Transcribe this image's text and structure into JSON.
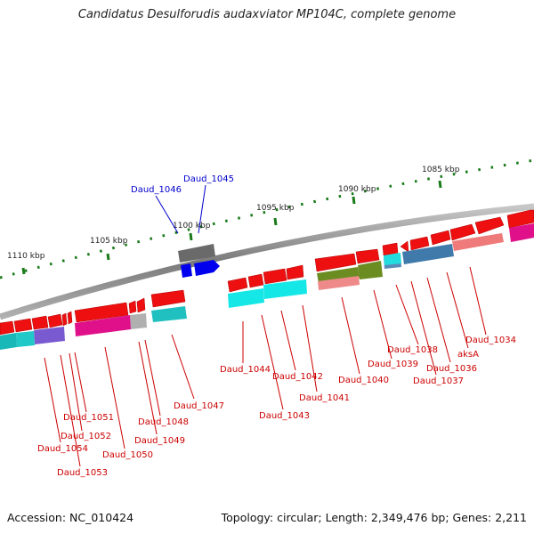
{
  "title": "Candidatus Desulforudis audaxviator MP104C, complete genome",
  "accession": "Accession: NC_010424",
  "footer": "Topology: circular; Length: 2,349,476 bp; Genes: 2,211",
  "scale_labels": [
    "1085 kbp",
    "1090 kbp",
    "1095 kbp",
    "1100 kbp",
    "1105 kbp",
    "1110 kbp"
  ],
  "gene_labels": [
    "Daud_1034",
    "aksA",
    "Daud_1036",
    "Daud_1037",
    "Daud_1038",
    "Daud_1039",
    "Daud_1040",
    "Daud_1041",
    "Daud_1042",
    "Daud_1043",
    "Daud_1044",
    "Daud_1045",
    "Daud_1046",
    "Daud_1047",
    "Daud_1048",
    "Daud_1049",
    "Daud_1050",
    "Daud_1051",
    "Daud_1052",
    "Daud_1053",
    "Daud_1054"
  ],
  "colors": {
    "backbone": "#8a8a8a",
    "tick": "#1a7a1a",
    "gene_label": "#cc0000",
    "highlight_label": "#0000cc",
    "cds_forward": "#ee0000",
    "cds_reverse": "#ee0000",
    "selected_gene": "#0000ee"
  }
}
